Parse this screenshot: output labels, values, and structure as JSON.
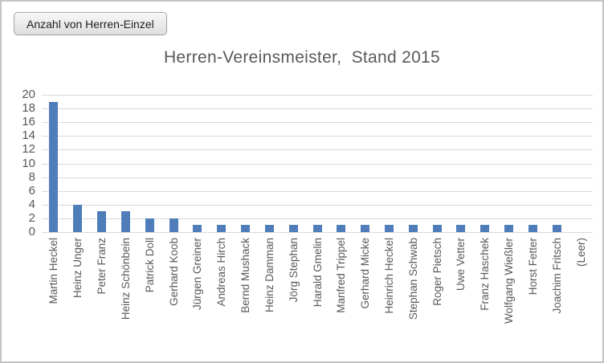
{
  "pivot_button": {
    "label": "Anzahl von Herren-Einzel"
  },
  "chart_data": {
    "type": "bar",
    "title": "Herren-Vereinsmeister,  Stand 2015",
    "categories": [
      "Martin Heckel",
      "Heinz Unger",
      "Peter Franz",
      "Heinz Schönbein",
      "Patrick Doll",
      "Gerhard Koob",
      "Jürgen Greiner",
      "Andreas Hirch",
      "Bernd Mushack",
      "Heinz Damman",
      "Jörg Stephan",
      "Harald Gmelin",
      "Manfred Trippel",
      "Gerhard Micke",
      "Heinrich Heckel",
      "Stephan Schwab",
      "Roger Pietsch",
      "Uwe Vetter",
      "Franz Haschek",
      "Wolfgang Wießler",
      "Horst Fetter",
      "Joachim Fritsch",
      "(Leer)"
    ],
    "values": [
      19,
      4,
      3,
      3,
      2,
      2,
      1,
      1,
      1,
      1,
      1,
      1,
      1,
      1,
      1,
      1,
      1,
      1,
      1,
      1,
      1,
      1,
      0
    ],
    "xlabel": "",
    "ylabel": "",
    "ylim": [
      0,
      20
    ],
    "ytick_step": 2,
    "grid": true,
    "legend": false,
    "bar_color": "#4e7dba",
    "gridline_color": "#d9d9d9",
    "text_color": "#595959"
  }
}
